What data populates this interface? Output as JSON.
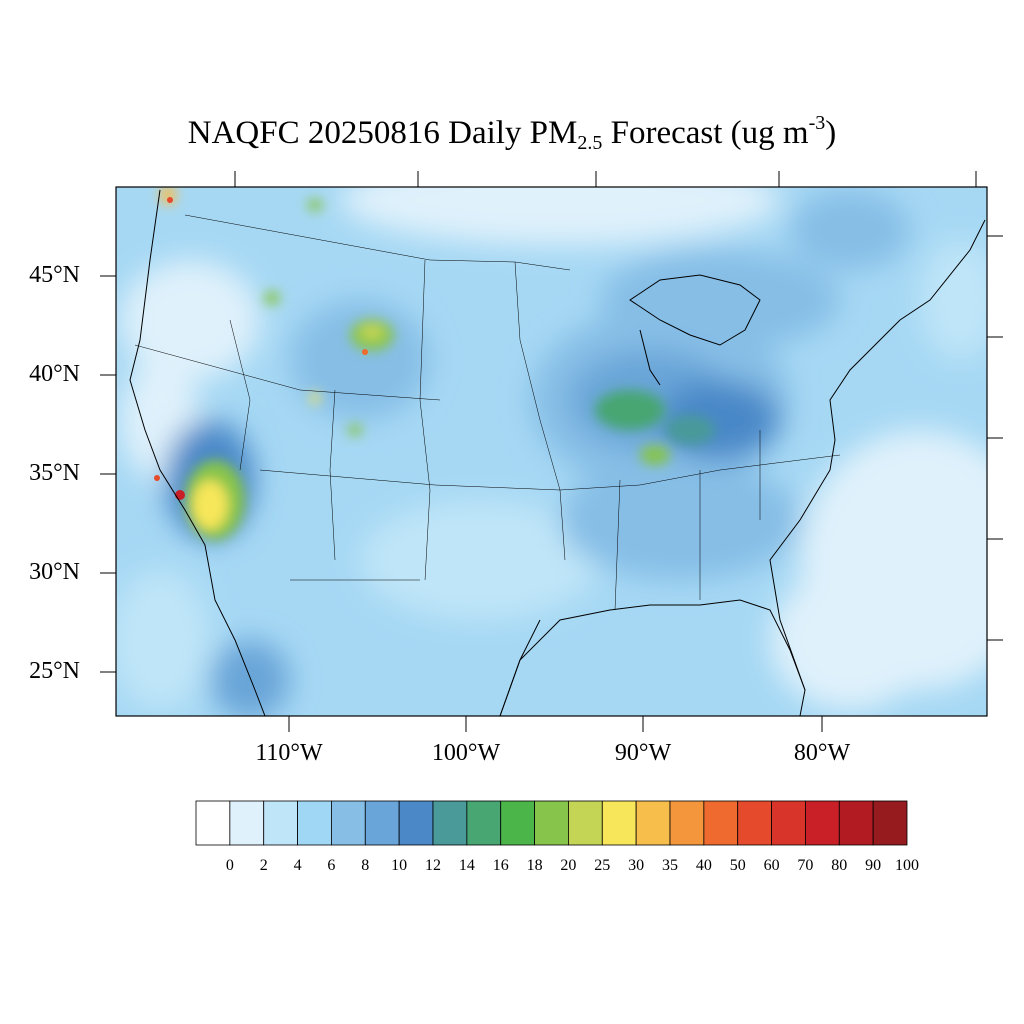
{
  "title": {
    "prefix": "NAQFC 20250816 Daily PM",
    "subscript": "2.5",
    "middle": " Forecast (ug m",
    "superscript": "-3",
    "suffix": ")"
  },
  "map": {
    "lat_labels": [
      "45°N",
      "40°N",
      "35°N",
      "30°N",
      "25°N"
    ],
    "lon_labels": [
      "110°W",
      "100°W",
      "90°W",
      "80°W"
    ]
  },
  "colorbar": {
    "labels": [
      "0",
      "2",
      "4",
      "6",
      "8",
      "10",
      "12",
      "14",
      "16",
      "18",
      "20",
      "25",
      "30",
      "35",
      "40",
      "50",
      "60",
      "70",
      "80",
      "90",
      "100"
    ],
    "colors": [
      "#ffffff",
      "#dff1fb",
      "#bfe5f8",
      "#a0d7f4",
      "#86bee6",
      "#69a5d8",
      "#4a88c8",
      "#4a9a9a",
      "#47a671",
      "#4cb549",
      "#86c44c",
      "#c4d556",
      "#f7e65a",
      "#f7be4b",
      "#f3963c",
      "#ee6a2f",
      "#e54a2c",
      "#d93429",
      "#c82026",
      "#b31b22",
      "#951b1e"
    ]
  }
}
